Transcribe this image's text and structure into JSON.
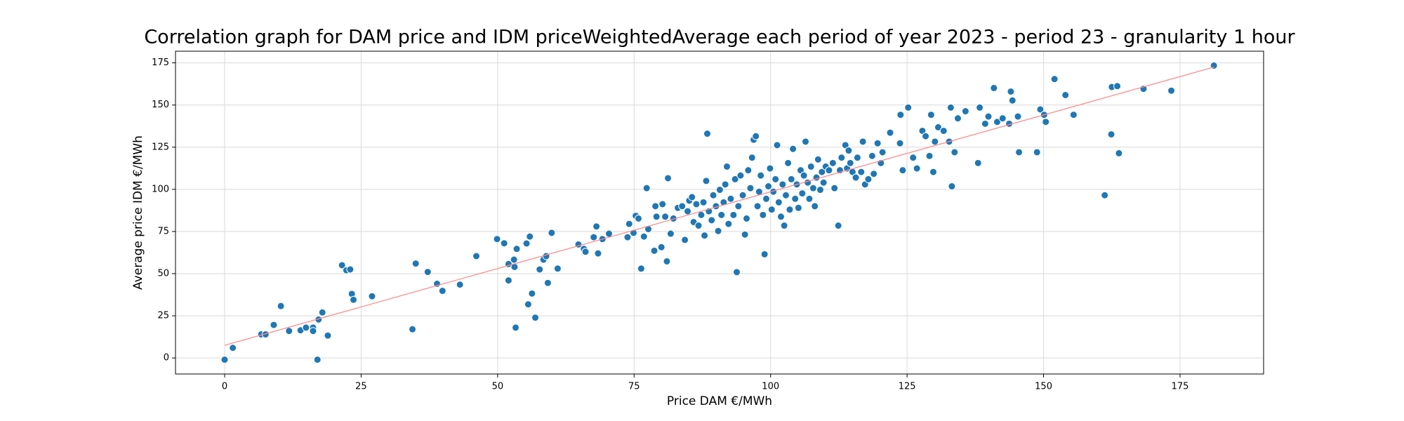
{
  "chart_data": {
    "type": "scatter",
    "title": "Correlation graph for DAM price and IDM priceWeightedAverage each period of year 2023 - period 23 - granularity 1 hour",
    "x_label": "Price DAM €/MWh",
    "y_label": "Average price IDM €/MWh",
    "xlim": [
      -9.0,
      190.3
    ],
    "ylim": [
      -9.5,
      181.9
    ],
    "xticks": [
      0,
      25,
      50,
      75,
      100,
      125,
      150,
      175
    ],
    "yticks": [
      0,
      25,
      50,
      75,
      100,
      125,
      150,
      175
    ],
    "grid": true,
    "color": "#1f77b4",
    "x": [
      0,
      1.5,
      6.7,
      7.5,
      9,
      10.3,
      11.8,
      13.9,
      14.9,
      16.2,
      16.2,
      17,
      17.2,
      17.9,
      18.9,
      21.5,
      22.3,
      23,
      23.3,
      23.6,
      27,
      34.4,
      35,
      37.2,
      38.9,
      39.9,
      43.1,
      46.1,
      49.9,
      51.2,
      52,
      52,
      53,
      53.1,
      53.3,
      53.5,
      55.3,
      55.6,
      55.9,
      56.3,
      56.9,
      57.7,
      58.4,
      58.9,
      59.2,
      59.9,
      61,
      64.8,
      65.8,
      66.1,
      67.6,
      68.1,
      68.4,
      69.2,
      70.4,
      73.8,
      74.1,
      74.9,
      75.3,
      75.8,
      76.3,
      76.8,
      77.3,
      77.6,
      78.7,
      78.9,
      79.1,
      80,
      80.2,
      80.7,
      81,
      81.2,
      81.7,
      82.2,
      83,
      83.8,
      84.3,
      84.8,
      85.1,
      85.6,
      85.9,
      86.4,
      86.8,
      87.3,
      87.7,
      87.9,
      88.2,
      88.4,
      88.7,
      89.2,
      89.5,
      90,
      90.4,
      90.7,
      91,
      91.4,
      91.7,
      92,
      92.3,
      92.7,
      93.2,
      93.5,
      93.8,
      94.1,
      94.5,
      94.9,
      95.3,
      95.6,
      95.9,
      96.3,
      96.6,
      96.9,
      97.3,
      97.6,
      97.9,
      98.2,
      98.6,
      98.9,
      99.2,
      99.6,
      99.9,
      100.2,
      100.5,
      100.9,
      101.2,
      101.5,
      101.9,
      102.2,
      102.5,
      102.8,
      103.2,
      103.5,
      103.8,
      104.1,
      104.5,
      104.8,
      105.1,
      105.5,
      105.8,
      106.1,
      106.4,
      106.8,
      107.1,
      107.4,
      107.8,
      108.1,
      108.4,
      108.7,
      109.1,
      109.4,
      109.7,
      110.1,
      110.7,
      111.4,
      111.7,
      112.4,
      112.7,
      113,
      113.7,
      114,
      114.3,
      114.6,
      115,
      115.6,
      115.9,
      116.6,
      116.9,
      117.3,
      117.9,
      118.6,
      118.9,
      119.6,
      120.2,
      120.5,
      121.9,
      123.7,
      123.8,
      124.2,
      125.2,
      126.1,
      126.8,
      127.8,
      128.4,
      129.1,
      129.4,
      129.8,
      130.1,
      130.7,
      131.7,
      132.7,
      133,
      133.2,
      133.7,
      134.3,
      135.7,
      138,
      138.3,
      139.3,
      139.9,
      140.9,
      141.5,
      142.5,
      143.7,
      144,
      144.3,
      145.3,
      145.5,
      148.8,
      149.4,
      150.1,
      150.4,
      152,
      154,
      155.5,
      161.2,
      162.4,
      162.5,
      163.5,
      163.8,
      168.3,
      173.4,
      181.2
    ],
    "values": [
      -1,
      6,
      14,
      14,
      19.6,
      30.8,
      16,
      16.4,
      18,
      18,
      16,
      -1,
      22.8,
      27,
      13.3,
      55,
      52,
      52.5,
      38,
      34.5,
      36.6,
      17,
      56,
      51,
      44,
      39.8,
      43.5,
      60.4,
      70.5,
      68,
      55.7,
      46,
      58.3,
      54,
      18,
      64.7,
      67.9,
      31.8,
      72,
      38.2,
      23.9,
      52.5,
      58.3,
      60.4,
      44.5,
      74.2,
      53,
      67.3,
      64.7,
      63,
      71.6,
      78,
      62,
      70.5,
      73.7,
      71.6,
      79.5,
      74.2,
      84.3,
      82.7,
      53,
      72,
      100.7,
      76.4,
      63.6,
      90,
      83.8,
      65.7,
      91.2,
      83.8,
      57.3,
      106.6,
      73.7,
      82.7,
      89,
      90,
      70,
      87,
      93.3,
      95.4,
      80.6,
      91.2,
      78.5,
      84.8,
      92.3,
      72.6,
      105,
      133,
      87,
      81.7,
      96.5,
      90,
      75.3,
      99.7,
      84.8,
      92.3,
      102.9,
      113.5,
      79.5,
      94.4,
      84.8,
      106,
      50.9,
      90,
      108.2,
      96.5,
      73.2,
      82.7,
      111.3,
      100.7,
      118.8,
      129.4,
      131.5,
      90,
      98.6,
      108.2,
      84.8,
      61.5,
      94.4,
      101.8,
      112.4,
      88,
      98.6,
      106,
      126.2,
      92.3,
      83.8,
      102.9,
      78.5,
      96.5,
      115.6,
      88,
      106,
      124,
      94.4,
      102.9,
      89,
      111.3,
      97.6,
      108.2,
      128.3,
      104,
      94.4,
      113.5,
      100.7,
      90,
      107,
      117.7,
      99.7,
      110.3,
      104,
      113.5,
      111.3,
      115.6,
      100.7,
      78.5,
      111.3,
      118.8,
      126.2,
      112.4,
      123,
      115.6,
      110.3,
      107,
      118.8,
      110.3,
      128.3,
      102.9,
      106,
      119.8,
      109.2,
      127.3,
      115.6,
      122,
      133.6,
      127.3,
      144.2,
      111.3,
      148.5,
      118.8,
      112.4,
      134.7,
      131.5,
      119.8,
      144.2,
      110.3,
      128.3,
      136.8,
      134.7,
      128.3,
      148.5,
      101.8,
      122,
      142.1,
      146.3,
      115.6,
      148.5,
      138.9,
      143.2,
      160.1,
      140,
      142.1,
      138.9,
      158,
      152.7,
      143.2,
      122,
      122,
      147.4,
      144.2,
      140,
      165.4,
      155.9,
      144.2,
      96.5,
      132.6,
      160.7,
      161.2,
      121.4,
      159.6,
      158.5,
      173.4
    ],
    "trend": {
      "x": [
        0,
        181.2
      ],
      "values": [
        7.5,
        172.5
      ],
      "color": "#ff8c8c"
    }
  }
}
